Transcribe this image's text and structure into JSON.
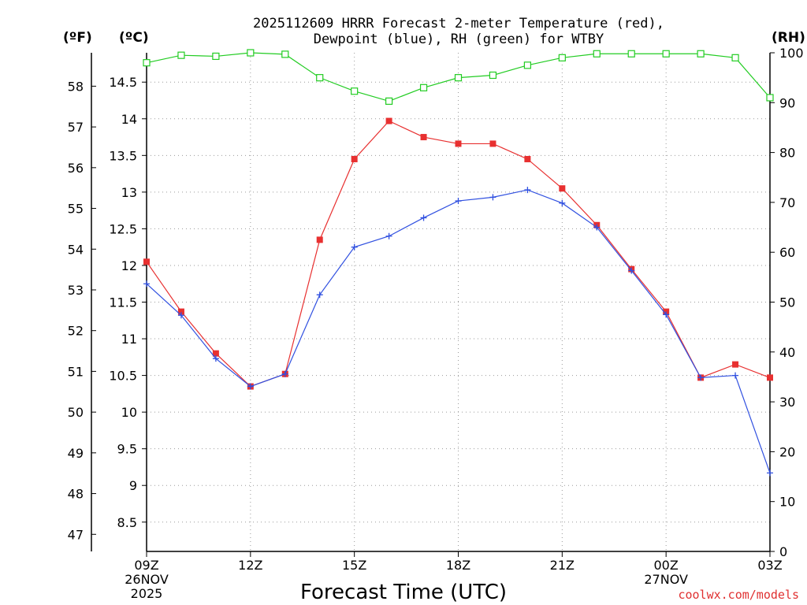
{
  "chart_data": {
    "type": "line",
    "title_line1": "2025112609 HRRR Forecast 2-meter Temperature (red),",
    "title_line2": "Dewpoint (blue), RH (green) for WTBY",
    "unit_f": "(ºF)",
    "unit_c": "(ºC)",
    "unit_rh": "(RH)",
    "xlabel": "Forecast Time (UTC)",
    "credit": "coolwx.com/models",
    "x_hours": [
      0,
      1,
      2,
      3,
      4,
      5,
      6,
      7,
      8,
      9,
      10,
      11,
      12,
      13,
      14,
      15,
      16,
      17,
      18
    ],
    "xlim": [
      0,
      18
    ],
    "x_ticks": [
      {
        "hour": 0,
        "label": "09Z",
        "sub1": "26NOV",
        "sub2": "2025"
      },
      {
        "hour": 3,
        "label": "12Z",
        "sub1": "",
        "sub2": ""
      },
      {
        "hour": 6,
        "label": "15Z",
        "sub1": "",
        "sub2": ""
      },
      {
        "hour": 9,
        "label": "18Z",
        "sub1": "",
        "sub2": ""
      },
      {
        "hour": 12,
        "label": "21Z",
        "sub1": "",
        "sub2": ""
      },
      {
        "hour": 15,
        "label": "00Z",
        "sub1": "27NOV",
        "sub2": ""
      },
      {
        "hour": 18,
        "label": "03Z",
        "sub1": "",
        "sub2": ""
      }
    ],
    "ylim_c": [
      8.1,
      14.9
    ],
    "y_ticks_c": [
      "8.5",
      "9",
      "9.5",
      "10",
      "10.5",
      "11",
      "11.5",
      "12",
      "12.5",
      "13",
      "13.5",
      "14",
      "14.5"
    ],
    "y_ticks_f": [
      "47",
      "48",
      "49",
      "50",
      "51",
      "52",
      "53",
      "54",
      "55",
      "56",
      "57",
      "58"
    ],
    "ylim_rh": [
      0,
      100
    ],
    "y_ticks_rh": [
      "0",
      "10",
      "20",
      "30",
      "40",
      "50",
      "60",
      "70",
      "80",
      "90",
      "100"
    ],
    "series": [
      {
        "name": "Temperature",
        "color": "#e83030",
        "marker": "filled-square",
        "values": [
          12.05,
          11.37,
          10.8,
          10.35,
          10.52,
          12.35,
          13.45,
          13.97,
          13.75,
          13.66,
          13.66,
          13.45,
          13.05,
          12.55,
          11.95,
          11.37,
          10.47,
          10.65,
          10.47
        ]
      },
      {
        "name": "Dewpoint",
        "color": "#3050e0",
        "marker": "plus",
        "values": [
          11.75,
          11.32,
          10.73,
          10.35,
          10.52,
          11.6,
          12.25,
          12.4,
          12.65,
          12.88,
          12.93,
          13.03,
          12.85,
          12.52,
          11.93,
          11.33,
          10.47,
          10.5,
          9.17
        ]
      },
      {
        "name": "RH",
        "color": "#22cc22",
        "marker": "open-square",
        "axis": "rh",
        "values": [
          98,
          99.5,
          99.3,
          100,
          99.7,
          95,
          92.3,
          90.3,
          93,
          95,
          95.5,
          97.5,
          99,
          99.8,
          99.8,
          99.8,
          99.8,
          99,
          91
        ]
      }
    ]
  }
}
